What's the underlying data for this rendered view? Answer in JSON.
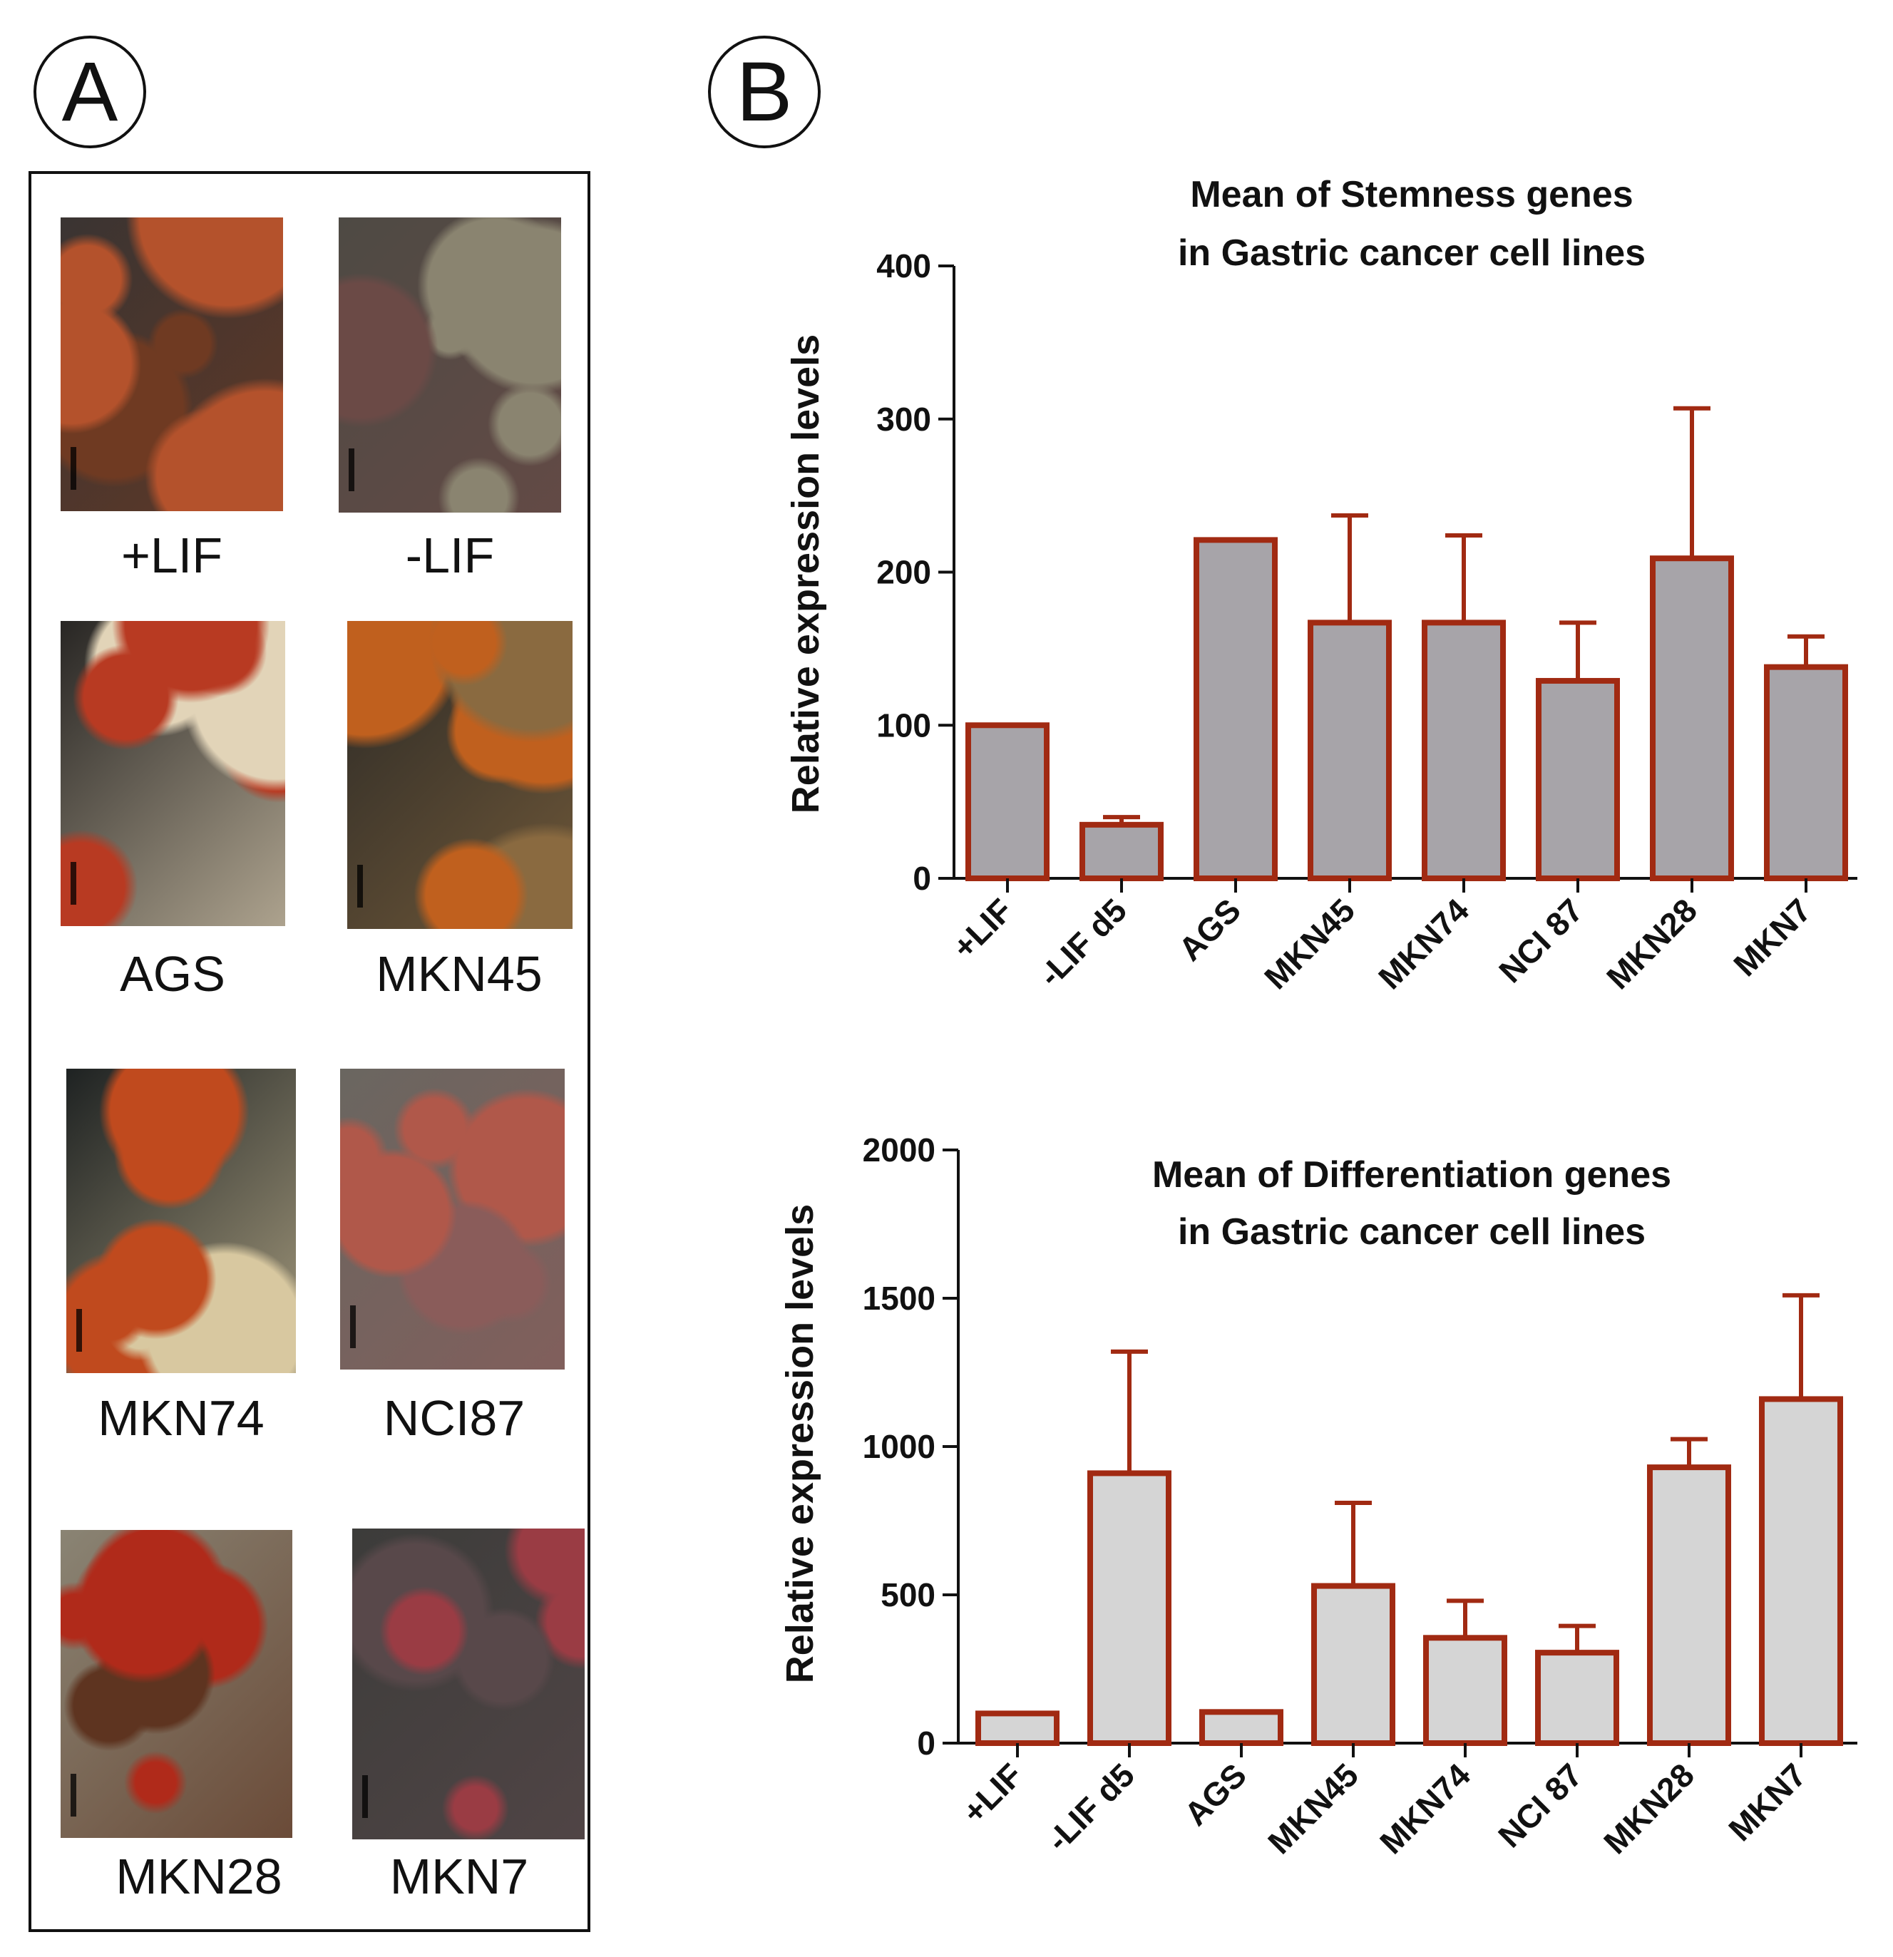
{
  "panel_a": {
    "letter": "A",
    "images": [
      {
        "label": "+LIF",
        "colors": [
          "#3a3432",
          "#b4522c",
          "#6f3a22"
        ]
      },
      {
        "label": "-LIF",
        "colors": [
          "#4e4a44",
          "#8a8470",
          "#6b4a46"
        ]
      },
      {
        "label": "AGS",
        "colors": [
          "#282624",
          "#b83a22",
          "#e2d4b8"
        ]
      },
      {
        "label": "MKN45",
        "colors": [
          "#2c2a26",
          "#c0601e",
          "#8a6a40"
        ]
      },
      {
        "label": "MKN74",
        "colors": [
          "#1e2222",
          "#c04a1e",
          "#d8c8a0"
        ]
      },
      {
        "label": "NCI87",
        "colors": [
          "#6a6660",
          "#b0584a",
          "#8a5c5a"
        ]
      },
      {
        "label": "MKN28",
        "colors": [
          "#8a8474",
          "#b02a1a",
          "#5e3420"
        ]
      },
      {
        "label": "MKN7",
        "colors": [
          "#3c3c3a",
          "#9a3c44",
          "#58484a"
        ]
      }
    ]
  },
  "panel_b": {
    "letter": "B"
  },
  "colors": {
    "bar_edge": "#a12a12",
    "bar_fill_top": "#a7a4a9",
    "bar_fill_bottom": "#d5d5d5",
    "axis": "#111111"
  },
  "chart_data": [
    {
      "type": "bar",
      "title": "Mean of Stemness genes",
      "subtitle": "in Gastric cancer cell lines",
      "xlabel": "",
      "ylabel": "Relative expression levels",
      "categories": [
        "+LIF",
        "-LIF d5",
        "AGS",
        "MKN45",
        "MKN74",
        "NCI 87",
        "MKN28",
        "MKN7"
      ],
      "values": [
        100,
        35,
        221,
        167,
        167,
        129,
        209,
        138
      ],
      "error": [
        0,
        5,
        0,
        70,
        57,
        38,
        98,
        20
      ],
      "ylim": [
        0,
        400
      ],
      "yticks": [
        0,
        100,
        200,
        300,
        400
      ],
      "grid": false
    },
    {
      "type": "bar",
      "title": "Mean of Differentiation genes",
      "subtitle": "in Gastric cancer cell lines",
      "xlabel": "",
      "ylabel": "Relative expression levels",
      "categories": [
        "+LIF",
        "-LIF d5",
        "AGS",
        "MKN45",
        "MKN74",
        "NCI 87",
        "MKN28",
        "MKN7"
      ],
      "values": [
        100,
        910,
        105,
        530,
        355,
        305,
        930,
        1160
      ],
      "error": [
        0,
        410,
        0,
        280,
        125,
        90,
        95,
        350
      ],
      "ylim": [
        0,
        2000
      ],
      "yticks": [
        0,
        500,
        1000,
        1500,
        2000
      ],
      "grid": false
    }
  ]
}
